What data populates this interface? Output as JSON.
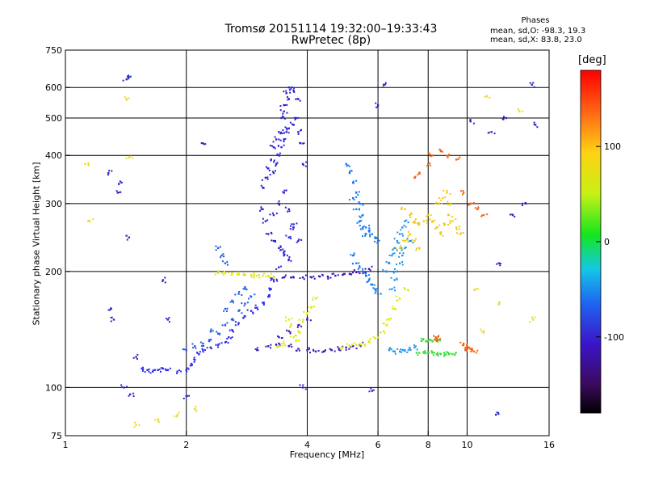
{
  "title": {
    "line1": "Tromsø 20151114 19:32:00–19:33:43",
    "line2": "RwPretec (8p)"
  },
  "stats": {
    "heading": "Phases",
    "line_o": "mean, sd,O: -98.3, 19.3",
    "line_x": "mean, sd,X: 83.8, 23.0"
  },
  "chart_data": {
    "type": "scatter",
    "title": "Tromsø 20151114 19:32:00–19:33:43",
    "subtitle": "RwPretec (8p)",
    "xlabel": "Frequency [MHz]",
    "ylabel": "Stationary phase Virtual Height [km]",
    "x_scale": "log",
    "y_scale": "log",
    "xlim": [
      1,
      16
    ],
    "ylim": [
      75,
      750
    ],
    "x_ticks": [
      1,
      2,
      4,
      6,
      8,
      10,
      16
    ],
    "x_tick_labels": [
      "1",
      "2",
      "4",
      "6",
      "8",
      "10",
      "16"
    ],
    "y_ticks": [
      75,
      100,
      200,
      300,
      400,
      500,
      600,
      750
    ],
    "y_tick_labels": [
      "75",
      "100",
      "200",
      "300",
      "400",
      "500",
      "600",
      "750"
    ],
    "x_grid": [
      2,
      4,
      6,
      8,
      10
    ],
    "y_grid": [
      100,
      200,
      300,
      400,
      500,
      600
    ],
    "colorbar": {
      "unit": "[deg]",
      "range": [
        -180,
        180
      ],
      "tick_values": [
        100,
        0,
        -100
      ],
      "tick_labels": [
        "100",
        "0",
        "-100"
      ]
    },
    "series": [
      {
        "phase": -110,
        "color": "#2a2af0",
        "points": [
          [
            1.55,
            112
          ],
          [
            1.6,
            111
          ],
          [
            1.65,
            110
          ],
          [
            1.7,
            111
          ],
          [
            1.75,
            112
          ],
          [
            1.8,
            111
          ],
          [
            1.9,
            110
          ],
          [
            2.0,
            111
          ],
          [
            2.05,
            114
          ],
          [
            2.1,
            118
          ],
          [
            2.15,
            122
          ],
          [
            2.2,
            125
          ],
          [
            2.3,
            127
          ],
          [
            2.4,
            129
          ],
          [
            2.5,
            131
          ],
          [
            2.55,
            135
          ],
          [
            2.6,
            141
          ],
          [
            2.7,
            147
          ],
          [
            2.8,
            153
          ],
          [
            2.9,
            158
          ],
          [
            3.0,
            161
          ],
          [
            3.1,
            166
          ],
          [
            3.2,
            172
          ],
          [
            3.25,
            180
          ],
          [
            3.3,
            190
          ],
          [
            3.4,
            205
          ],
          [
            3.5,
            225
          ],
          [
            3.6,
            245
          ],
          [
            3.7,
            265
          ]
        ]
      },
      {
        "phase": -100,
        "color": "#1e5ae6",
        "points": [
          [
            2.2,
            130
          ],
          [
            2.3,
            133
          ],
          [
            2.4,
            138
          ],
          [
            2.5,
            145
          ],
          [
            2.6,
            150
          ],
          [
            2.7,
            158
          ],
          [
            2.8,
            165
          ],
          [
            2.9,
            172
          ],
          [
            2.5,
            160
          ],
          [
            2.6,
            168
          ],
          [
            2.7,
            175
          ],
          [
            2.8,
            182
          ],
          [
            2.4,
            230
          ],
          [
            2.45,
            220
          ],
          [
            2.5,
            210
          ],
          [
            2.0,
            125
          ],
          [
            2.1,
            128
          ],
          [
            2.3,
            140
          ]
        ]
      },
      {
        "phase": -120,
        "color": "#2a1ed2",
        "points": [
          [
            3.1,
            330
          ],
          [
            3.15,
            350
          ],
          [
            3.2,
            370
          ],
          [
            3.25,
            390
          ],
          [
            3.3,
            420
          ],
          [
            3.35,
            440
          ],
          [
            3.4,
            460
          ],
          [
            3.45,
            500
          ],
          [
            3.5,
            540
          ],
          [
            3.55,
            580
          ],
          [
            3.6,
            600
          ],
          [
            3.3,
            360
          ],
          [
            3.35,
            380
          ],
          [
            3.4,
            400
          ],
          [
            3.45,
            420
          ],
          [
            3.5,
            440
          ],
          [
            3.55,
            460
          ],
          [
            3.6,
            470
          ],
          [
            3.7,
            480
          ],
          [
            3.8,
            460
          ],
          [
            3.5,
            520
          ],
          [
            3.6,
            560
          ],
          [
            3.7,
            590
          ],
          [
            3.8,
            560
          ],
          [
            3.75,
            500
          ],
          [
            3.85,
            430
          ],
          [
            3.9,
            380
          ],
          [
            3.1,
            290
          ],
          [
            3.15,
            270
          ],
          [
            3.2,
            250
          ],
          [
            3.3,
            240
          ],
          [
            3.4,
            230
          ],
          [
            3.5,
            220
          ],
          [
            3.6,
            215
          ],
          [
            3.3,
            280
          ],
          [
            3.4,
            300
          ],
          [
            3.5,
            320
          ],
          [
            3.6,
            290
          ],
          [
            3.7,
            260
          ],
          [
            3.8,
            240
          ]
        ]
      },
      {
        "phase": -135,
        "color": "#3c14b4",
        "points": [
          [
            3.0,
            125
          ],
          [
            3.2,
            128
          ],
          [
            3.4,
            130
          ],
          [
            3.6,
            128
          ],
          [
            3.8,
            126
          ],
          [
            4.0,
            125
          ],
          [
            4.2,
            124
          ],
          [
            4.4,
            124
          ],
          [
            4.6,
            125
          ],
          [
            4.8,
            126
          ],
          [
            5.0,
            127
          ],
          [
            5.2,
            128
          ],
          [
            5.4,
            129
          ],
          [
            3.4,
            135
          ],
          [
            3.6,
            140
          ],
          [
            3.8,
            145
          ],
          [
            4.0,
            150
          ],
          [
            3.3,
            193
          ],
          [
            3.5,
            193
          ],
          [
            3.7,
            193
          ],
          [
            3.9,
            193
          ],
          [
            4.1,
            193
          ],
          [
            4.3,
            194
          ],
          [
            4.5,
            194
          ],
          [
            4.7,
            195
          ],
          [
            4.9,
            196
          ],
          [
            5.1,
            197
          ],
          [
            5.3,
            199
          ],
          [
            5.5,
            200
          ],
          [
            5.7,
            203
          ]
        ]
      },
      {
        "phase": 120,
        "color": "#e0e814",
        "points": [
          [
            2.4,
            198
          ],
          [
            2.5,
            198
          ],
          [
            2.6,
            197
          ],
          [
            2.7,
            197
          ],
          [
            2.8,
            196
          ],
          [
            2.9,
            196
          ],
          [
            3.0,
            195
          ],
          [
            3.1,
            195
          ],
          [
            3.2,
            195
          ],
          [
            3.3,
            194
          ],
          [
            3.7,
            135
          ],
          [
            3.8,
            140
          ],
          [
            3.9,
            148
          ],
          [
            4.0,
            155
          ],
          [
            4.1,
            162
          ],
          [
            4.2,
            170
          ],
          [
            3.6,
            150
          ],
          [
            3.65,
            145
          ],
          [
            3.75,
            132
          ],
          [
            3.5,
            130
          ],
          [
            3.4,
            128
          ],
          [
            4.9,
            127
          ],
          [
            5.1,
            128
          ],
          [
            5.3,
            129
          ],
          [
            5.5,
            130
          ],
          [
            5.7,
            132
          ],
          [
            5.9,
            134
          ],
          [
            6.2,
            140
          ],
          [
            6.3,
            145
          ],
          [
            6.4,
            150
          ],
          [
            6.6,
            160
          ],
          [
            6.8,
            170
          ],
          [
            7.0,
            180
          ]
        ]
      },
      {
        "phase": -95,
        "color": "#1478f0",
        "points": [
          [
            5.0,
            380
          ],
          [
            5.1,
            360
          ],
          [
            5.2,
            340
          ],
          [
            5.3,
            320
          ],
          [
            5.4,
            300
          ],
          [
            5.5,
            280
          ],
          [
            5.6,
            260
          ],
          [
            5.7,
            255
          ],
          [
            5.8,
            250
          ],
          [
            5.9,
            245
          ],
          [
            6.0,
            240
          ],
          [
            5.2,
            220
          ],
          [
            5.3,
            210
          ],
          [
            5.4,
            205
          ],
          [
            5.5,
            200
          ],
          [
            5.6,
            195
          ],
          [
            5.7,
            190
          ],
          [
            5.8,
            185
          ],
          [
            5.9,
            180
          ],
          [
            6.0,
            175
          ],
          [
            5.2,
            310
          ],
          [
            5.3,
            290
          ],
          [
            5.4,
            270
          ],
          [
            5.5,
            260
          ],
          [
            5.6,
            250
          ]
        ]
      },
      {
        "phase": 90,
        "color": "#f0c814",
        "points": [
          [
            7.0,
            290
          ],
          [
            7.2,
            280
          ],
          [
            7.4,
            270
          ],
          [
            7.6,
            265
          ],
          [
            7.8,
            270
          ],
          [
            8.0,
            280
          ],
          [
            8.2,
            270
          ],
          [
            8.4,
            260
          ],
          [
            8.6,
            250
          ],
          [
            8.8,
            265
          ],
          [
            9.0,
            280
          ],
          [
            9.2,
            270
          ],
          [
            9.4,
            260
          ],
          [
            9.6,
            250
          ],
          [
            8.5,
            300
          ],
          [
            8.7,
            310
          ],
          [
            8.9,
            320
          ],
          [
            9.1,
            300
          ],
          [
            6.8,
            230
          ],
          [
            7.0,
            240
          ],
          [
            7.2,
            250
          ],
          [
            7.4,
            240
          ],
          [
            7.6,
            230
          ]
        ]
      },
      {
        "phase": -90,
        "color": "#1e96e6",
        "points": [
          [
            6.4,
            125
          ],
          [
            6.6,
            124
          ],
          [
            6.8,
            124
          ],
          [
            7.0,
            125
          ],
          [
            7.2,
            126
          ],
          [
            7.4,
            127
          ],
          [
            6.5,
            180
          ],
          [
            6.6,
            190
          ],
          [
            6.7,
            200
          ],
          [
            6.8,
            210
          ],
          [
            6.9,
            220
          ],
          [
            7.0,
            230
          ],
          [
            7.2,
            240
          ],
          [
            6.3,
            200
          ],
          [
            6.4,
            210
          ],
          [
            6.5,
            220
          ],
          [
            6.6,
            230
          ],
          [
            6.7,
            240
          ],
          [
            6.8,
            250
          ],
          [
            6.9,
            260
          ],
          [
            7.0,
            270
          ]
        ]
      },
      {
        "phase": 40,
        "color": "#3cdc3c",
        "points": [
          [
            7.6,
            123
          ],
          [
            7.8,
            123
          ],
          [
            8.0,
            123
          ],
          [
            8.2,
            123
          ],
          [
            8.4,
            122
          ],
          [
            8.6,
            122
          ],
          [
            8.8,
            122
          ],
          [
            9.0,
            122
          ],
          [
            9.2,
            122
          ],
          [
            7.7,
            132
          ],
          [
            7.9,
            132
          ],
          [
            8.1,
            133
          ],
          [
            8.3,
            133
          ],
          [
            8.5,
            133
          ]
        ]
      },
      {
        "phase": 150,
        "color": "#f06414",
        "points": [
          [
            8.3,
            133
          ],
          [
            8.35,
            135
          ],
          [
            8.4,
            134
          ],
          [
            9.8,
            130
          ],
          [
            10.0,
            128
          ],
          [
            10.2,
            126
          ],
          [
            10.4,
            124
          ],
          [
            9.9,
            125
          ],
          [
            10.1,
            127
          ],
          [
            7.4,
            350
          ],
          [
            7.6,
            360
          ],
          [
            8.0,
            380
          ],
          [
            8.2,
            400
          ],
          [
            8.6,
            410
          ],
          [
            9.0,
            400
          ],
          [
            9.4,
            390
          ],
          [
            10.6,
            290
          ],
          [
            11.0,
            280
          ],
          [
            10.2,
            300
          ],
          [
            9.8,
            320
          ]
        ]
      },
      {
        "phase": -120,
        "color": "#2828c8",
        "points": [
          [
            1.4,
            100
          ],
          [
            1.45,
            96
          ],
          [
            1.3,
            160
          ],
          [
            1.32,
            150
          ],
          [
            1.35,
            320
          ],
          [
            1.38,
            340
          ],
          [
            1.42,
            630
          ],
          [
            1.43,
            640
          ],
          [
            1.28,
            360
          ],
          [
            1.44,
            245
          ],
          [
            1.5,
            120
          ],
          [
            1.75,
            190
          ],
          [
            1.8,
            150
          ],
          [
            2.0,
            95
          ],
          [
            2.2,
            430
          ],
          [
            14.5,
            610
          ],
          [
            14.8,
            480
          ],
          [
            11.5,
            460
          ],
          [
            10.2,
            490
          ],
          [
            12.5,
            500
          ],
          [
            11.8,
            85
          ],
          [
            6.2,
            610
          ],
          [
            6.0,
            540
          ],
          [
            5.8,
            98
          ],
          [
            3.9,
            100
          ],
          [
            14.0,
            300
          ],
          [
            13.0,
            280
          ],
          [
            12.0,
            210
          ]
        ]
      },
      {
        "phase": 80,
        "color": "#e6dc28",
        "points": [
          [
            1.12,
            380
          ],
          [
            1.15,
            270
          ],
          [
            1.42,
            560
          ],
          [
            1.44,
            395
          ],
          [
            1.5,
            80
          ],
          [
            1.7,
            82
          ],
          [
            1.9,
            85
          ],
          [
            2.1,
            88
          ],
          [
            13.5,
            520
          ],
          [
            11.2,
            570
          ],
          [
            14.6,
            150
          ],
          [
            12.0,
            165
          ],
          [
            11.0,
            140
          ],
          [
            10.5,
            180
          ]
        ]
      }
    ]
  }
}
